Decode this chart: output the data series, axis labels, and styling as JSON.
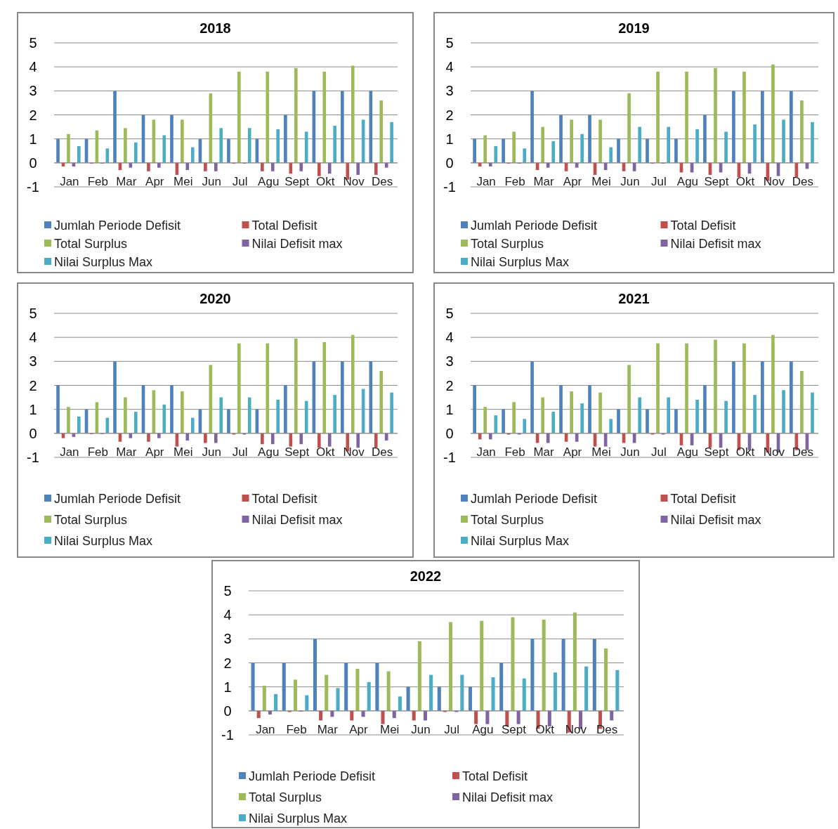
{
  "chart_data": [
    {
      "type": "bar",
      "title": "2018",
      "categories": [
        "Jan",
        "Feb",
        "Mar",
        "Apr",
        "Mei",
        "Jun",
        "Jul",
        "Agu",
        "Sept",
        "Okt",
        "Nov",
        "Des"
      ],
      "ylim": [
        -1,
        5
      ],
      "yticks": [
        -1,
        0,
        1,
        2,
        3,
        4,
        5
      ],
      "grid": "y",
      "legend": "bottom",
      "series": [
        {
          "name": "Jumlah Periode Defisit",
          "color": "#4f81bd",
          "values": [
            1,
            1,
            3,
            2,
            2,
            1,
            1,
            1,
            2,
            3,
            3,
            3
          ]
        },
        {
          "name": "Total Defisit",
          "color": "#c0504d",
          "values": [
            -0.15,
            -0.03,
            -0.3,
            -0.35,
            -0.5,
            -0.35,
            -0.03,
            -0.35,
            -0.45,
            -0.55,
            -0.7,
            -0.5
          ]
        },
        {
          "name": "Total Surplus",
          "color": "#9bbb59",
          "values": [
            1.2,
            1.35,
            1.45,
            1.8,
            1.8,
            2.9,
            3.8,
            3.8,
            3.95,
            3.8,
            4.05,
            2.6
          ]
        },
        {
          "name": "Nilai Defisit max",
          "color": "#8064a2",
          "values": [
            -0.15,
            -0.03,
            -0.2,
            -0.2,
            -0.3,
            -0.35,
            -0.03,
            -0.35,
            -0.35,
            -0.45,
            -0.5,
            -0.2
          ]
        },
        {
          "name": "Nilai Surplus Max",
          "color": "#4bacc6",
          "values": [
            0.7,
            0.6,
            0.85,
            1.15,
            0.65,
            1.45,
            1.45,
            1.4,
            1.3,
            1.55,
            1.8,
            1.7
          ]
        }
      ]
    },
    {
      "type": "bar",
      "title": "2019",
      "categories": [
        "Jan",
        "Feb",
        "Mar",
        "Apr",
        "Mei",
        "Jun",
        "Jul",
        "Agu",
        "Sept",
        "Okt",
        "Nov",
        "Des"
      ],
      "ylim": [
        -1,
        5
      ],
      "yticks": [
        -1,
        0,
        1,
        2,
        3,
        4,
        5
      ],
      "grid": "y",
      "legend": "bottom",
      "series": [
        {
          "name": "Jumlah Periode Defisit",
          "color": "#4f81bd",
          "values": [
            1,
            1,
            3,
            2,
            2,
            1,
            1,
            1,
            2,
            3,
            3,
            3
          ]
        },
        {
          "name": "Total Defisit",
          "color": "#c0504d",
          "values": [
            -0.15,
            -0.03,
            -0.3,
            -0.35,
            -0.5,
            -0.35,
            -0.03,
            -0.4,
            -0.5,
            -0.6,
            -0.75,
            -0.6
          ]
        },
        {
          "name": "Total Surplus",
          "color": "#9bbb59",
          "values": [
            1.15,
            1.3,
            1.5,
            1.8,
            1.8,
            2.9,
            3.8,
            3.8,
            3.95,
            3.8,
            4.1,
            2.6
          ]
        },
        {
          "name": "Nilai Defisit max",
          "color": "#8064a2",
          "values": [
            -0.15,
            -0.03,
            -0.2,
            -0.2,
            -0.3,
            -0.35,
            -0.03,
            -0.4,
            -0.4,
            -0.45,
            -0.55,
            -0.25
          ]
        },
        {
          "name": "Nilai Surplus Max",
          "color": "#4bacc6",
          "values": [
            0.7,
            0.6,
            0.9,
            1.2,
            0.65,
            1.5,
            1.5,
            1.4,
            1.3,
            1.6,
            1.8,
            1.7
          ]
        }
      ]
    },
    {
      "type": "bar",
      "title": "2020",
      "categories": [
        "Jan",
        "Feb",
        "Mar",
        "Apr",
        "Mei",
        "Jun",
        "Jul",
        "Agu",
        "Sept",
        "Okt",
        "Nov",
        "Des"
      ],
      "ylim": [
        -1,
        5
      ],
      "yticks": [
        -1,
        0,
        1,
        2,
        3,
        4,
        5
      ],
      "grid": "y",
      "legend": "bottom",
      "series": [
        {
          "name": "Jumlah Periode Defisit",
          "color": "#4f81bd",
          "values": [
            2,
            1,
            3,
            2,
            2,
            1,
            1,
            1,
            2,
            3,
            3,
            3
          ]
        },
        {
          "name": "Total Defisit",
          "color": "#c0504d",
          "values": [
            -0.2,
            -0.03,
            -0.35,
            -0.35,
            -0.55,
            -0.4,
            -0.05,
            -0.45,
            -0.55,
            -0.6,
            -0.75,
            -0.6
          ]
        },
        {
          "name": "Total Surplus",
          "color": "#9bbb59",
          "values": [
            1.1,
            1.3,
            1.5,
            1.8,
            1.75,
            2.85,
            3.75,
            3.75,
            3.95,
            3.8,
            4.1,
            2.6
          ]
        },
        {
          "name": "Nilai Defisit max",
          "color": "#8064a2",
          "values": [
            -0.15,
            -0.03,
            -0.2,
            -0.2,
            -0.3,
            -0.4,
            -0.05,
            -0.45,
            -0.45,
            -0.55,
            -0.6,
            -0.3
          ]
        },
        {
          "name": "Nilai Surplus Max",
          "color": "#4bacc6",
          "values": [
            0.7,
            0.65,
            0.9,
            1.2,
            0.65,
            1.5,
            1.5,
            1.4,
            1.35,
            1.6,
            1.85,
            1.7
          ]
        }
      ]
    },
    {
      "type": "bar",
      "title": "2021",
      "categories": [
        "Jan",
        "Feb",
        "Mar",
        "Apr",
        "Mei",
        "Jun",
        "Jul",
        "Agu",
        "Sept",
        "Okt",
        "Nov",
        "Des"
      ],
      "ylim": [
        -1,
        5
      ],
      "yticks": [
        -1,
        0,
        1,
        2,
        3,
        4,
        5
      ],
      "grid": "y",
      "legend": "bottom",
      "series": [
        {
          "name": "Jumlah Periode Defisit",
          "color": "#4f81bd",
          "values": [
            2,
            1,
            3,
            2,
            2,
            1,
            1,
            1,
            2,
            3,
            3,
            3
          ]
        },
        {
          "name": "Total Defisit",
          "color": "#c0504d",
          "values": [
            -0.25,
            -0.05,
            -0.4,
            -0.35,
            -0.55,
            -0.4,
            -0.05,
            -0.5,
            -0.6,
            -0.7,
            -0.8,
            -0.7
          ]
        },
        {
          "name": "Total Surplus",
          "color": "#9bbb59",
          "values": [
            1.1,
            1.3,
            1.5,
            1.75,
            1.7,
            2.85,
            3.75,
            3.75,
            3.9,
            3.75,
            4.1,
            2.6
          ]
        },
        {
          "name": "Nilai Defisit max",
          "color": "#8064a2",
          "values": [
            -0.25,
            -0.05,
            -0.4,
            -0.35,
            -0.55,
            -0.4,
            -0.05,
            -0.5,
            -0.6,
            -0.7,
            -0.8,
            -0.7
          ]
        },
        {
          "name": "Nilai Surplus Max",
          "color": "#4bacc6",
          "values": [
            0.75,
            0.6,
            0.9,
            1.25,
            0.6,
            1.5,
            1.5,
            1.4,
            1.35,
            1.6,
            1.8,
            1.7
          ]
        }
      ]
    },
    {
      "type": "bar",
      "title": "2022",
      "categories": [
        "Jan",
        "Feb",
        "Mar",
        "Apr",
        "Mei",
        "Jun",
        "Jul",
        "Agu",
        "Sept",
        "Okt",
        "Nov",
        "Des"
      ],
      "ylim": [
        -1,
        5
      ],
      "yticks": [
        -1,
        0,
        1,
        2,
        3,
        4,
        5
      ],
      "grid": "y",
      "legend": "bottom",
      "series": [
        {
          "name": "Jumlah Periode Defisit",
          "color": "#4f81bd",
          "values": [
            2,
            2,
            3,
            2,
            2,
            1,
            1,
            1,
            2,
            3,
            3,
            3
          ]
        },
        {
          "name": "Total Defisit",
          "color": "#c0504d",
          "values": [
            -0.3,
            -0.05,
            -0.4,
            -0.4,
            -0.55,
            -0.4,
            -0.05,
            -0.55,
            -0.65,
            -0.75,
            -0.9,
            -0.75
          ]
        },
        {
          "name": "Total Surplus",
          "color": "#9bbb59",
          "values": [
            1.05,
            1.3,
            1.5,
            1.75,
            1.65,
            2.9,
            3.7,
            3.75,
            3.9,
            3.8,
            4.1,
            2.6
          ]
        },
        {
          "name": "Nilai Defisit max",
          "color": "#8064a2",
          "values": [
            -0.15,
            -0.03,
            -0.25,
            -0.25,
            -0.3,
            -0.4,
            -0.05,
            -0.55,
            -0.55,
            -0.65,
            -0.75,
            -0.4
          ]
        },
        {
          "name": "Nilai Surplus Max",
          "color": "#4bacc6",
          "values": [
            0.7,
            0.65,
            0.95,
            1.2,
            0.6,
            1.5,
            1.5,
            1.4,
            1.35,
            1.6,
            1.85,
            1.7
          ]
        }
      ]
    }
  ]
}
